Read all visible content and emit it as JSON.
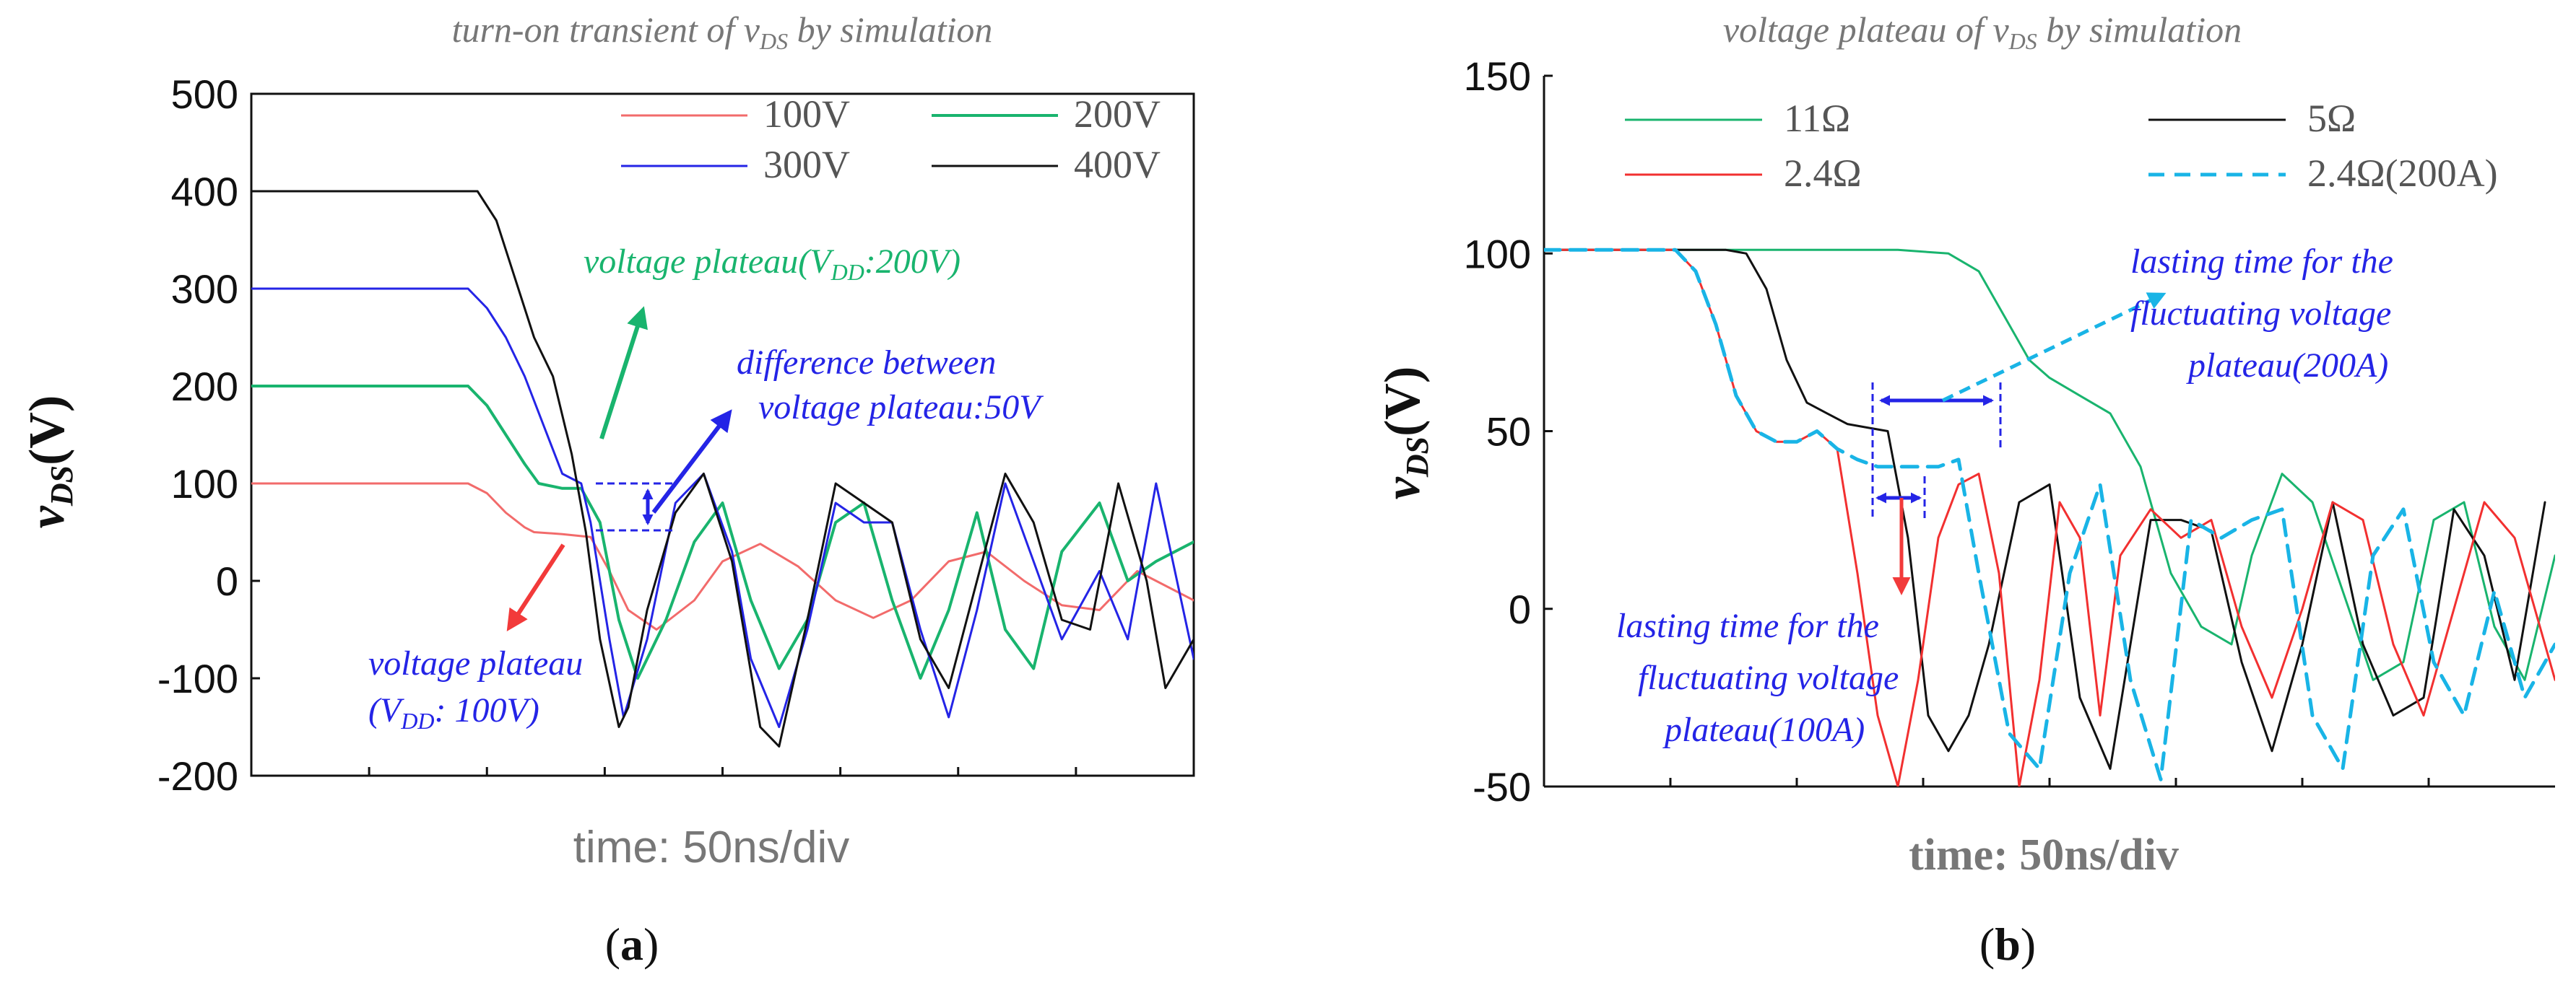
{
  "chart_data": [
    {
      "type": "line",
      "panel_label": "a",
      "title": "turn-on transient of v_DS by simulation",
      "title_main": "turn-on transient of ",
      "title_var": "v",
      "title_sub": "DS",
      "title_rest": " by simulation",
      "xlabel": "time: 50ns/div",
      "ylabel_main": "v",
      "ylabel_sub": "DS",
      "ylabel_unit": "(V)",
      "ylim": [
        -200,
        500
      ],
      "yticks": [
        -200,
        -100,
        0,
        100,
        200,
        300,
        400,
        500
      ],
      "ytick_labels": [
        "-200",
        "-100",
        "0",
        "100",
        "200",
        "300",
        "400",
        "500"
      ],
      "xlim": [
        0,
        10
      ],
      "grid": false,
      "legend": "top-right",
      "series": [
        {
          "name": "100V",
          "color": "#f26b6b",
          "width": 3,
          "x": [
            0,
            2.3,
            2.5,
            2.7,
            2.9,
            3.0,
            3.3,
            3.6,
            3.8,
            4.0,
            4.3,
            4.7,
            5.0,
            5.4,
            5.8,
            6.2,
            6.6,
            7.0,
            7.4,
            7.8,
            8.2,
            8.6,
            9.0,
            9.4,
            10.0
          ],
          "y": [
            100,
            100,
            90,
            70,
            55,
            50,
            48,
            45,
            10,
            -30,
            -50,
            -20,
            20,
            38,
            15,
            -20,
            -38,
            -20,
            20,
            30,
            0,
            -25,
            -30,
            10,
            -20
          ]
        },
        {
          "name": "200V",
          "color": "#19b46e",
          "width": 4,
          "x": [
            0,
            2.3,
            2.5,
            2.7,
            2.9,
            3.05,
            3.3,
            3.5,
            3.7,
            3.9,
            4.1,
            4.4,
            4.7,
            5.0,
            5.3,
            5.6,
            5.9,
            6.2,
            6.5,
            6.8,
            7.1,
            7.4,
            7.7,
            8.0,
            8.3,
            8.6,
            9.0,
            9.3,
            9.6,
            10.0
          ],
          "y": [
            200,
            200,
            180,
            150,
            120,
            100,
            95,
            95,
            60,
            -40,
            -100,
            -40,
            40,
            80,
            -20,
            -90,
            -40,
            60,
            80,
            -20,
            -100,
            -30,
            70,
            -50,
            -90,
            30,
            80,
            0,
            20,
            40
          ]
        },
        {
          "name": "300V",
          "color": "#2424e6",
          "width": 3,
          "x": [
            0,
            2.3,
            2.5,
            2.7,
            2.9,
            3.1,
            3.3,
            3.5,
            3.6,
            3.8,
            3.95,
            4.2,
            4.5,
            4.8,
            5.1,
            5.3,
            5.6,
            5.9,
            6.2,
            6.5,
            6.8,
            7.1,
            7.4,
            7.7,
            8.0,
            8.3,
            8.6,
            9.0,
            9.3,
            9.6,
            10.0
          ],
          "y": [
            300,
            300,
            280,
            250,
            210,
            160,
            110,
            100,
            60,
            -60,
            -140,
            -60,
            80,
            110,
            30,
            -80,
            -150,
            -50,
            80,
            60,
            60,
            -50,
            -140,
            -30,
            100,
            20,
            -60,
            10,
            -60,
            100,
            -80
          ]
        },
        {
          "name": "400V",
          "color": "#111111",
          "width": 3,
          "x": [
            0,
            2.4,
            2.6,
            2.8,
            3.0,
            3.2,
            3.4,
            3.55,
            3.7,
            3.9,
            4.0,
            4.2,
            4.5,
            4.8,
            5.1,
            5.4,
            5.6,
            5.9,
            6.2,
            6.5,
            6.8,
            7.1,
            7.4,
            7.7,
            8.0,
            8.3,
            8.6,
            8.9,
            9.2,
            9.5,
            9.7,
            10.0
          ],
          "y": [
            400,
            400,
            370,
            310,
            250,
            210,
            130,
            50,
            -60,
            -150,
            -130,
            -30,
            70,
            110,
            20,
            -150,
            -170,
            -40,
            100,
            80,
            60,
            -60,
            -110,
            0,
            110,
            60,
            -40,
            -50,
            100,
            0,
            -110,
            -60
          ]
        }
      ],
      "annotations": [
        {
          "text_main": "voltage plateau(",
          "text_var": "V",
          "text_sub": "DD",
          "text_rest": ":200V)",
          "color": "#19b46e"
        },
        {
          "text_line1": "difference between",
          "text_line2": "voltage plateau:50V",
          "color": "#2424e6"
        },
        {
          "text_line1": "voltage plateau",
          "text_open": "(",
          "text_var": "V",
          "text_sub": "DD",
          "text_rest": ": 100V)",
          "color": "#2424e6"
        }
      ]
    },
    {
      "type": "line",
      "panel_label": "b",
      "title": "voltage plateau of v_DS by simulation",
      "title_main": "voltage plateau of ",
      "title_var": "v",
      "title_sub": "DS",
      "title_rest": " by simulation",
      "xlabel": "time: 50ns/div",
      "ylabel_main": "v",
      "ylabel_sub": "DS",
      "ylabel_unit": "(V)",
      "ylim": [
        -50,
        150
      ],
      "yticks": [
        -50,
        0,
        50,
        100,
        150
      ],
      "ytick_labels": [
        "-50",
        "0",
        "50",
        "100",
        "150"
      ],
      "xlim": [
        0,
        10
      ],
      "grid": false,
      "legend": "top",
      "series": [
        {
          "name": "11Ω",
          "color": "#19b46e",
          "width": 3,
          "dash": "",
          "x": [
            0,
            2.0,
            3.5,
            4.0,
            4.3,
            4.6,
            4.8,
            5.0,
            5.3,
            5.6,
            5.9,
            6.2,
            6.5,
            6.8,
            7.0,
            7.3,
            7.6,
            7.9,
            8.2,
            8.5,
            8.8,
            9.1,
            9.4,
            9.7,
            10.0
          ],
          "y": [
            101,
            101,
            101,
            100,
            95,
            80,
            70,
            65,
            60,
            55,
            40,
            10,
            -5,
            -10,
            15,
            38,
            30,
            5,
            -20,
            -15,
            25,
            30,
            -5,
            -20,
            15
          ]
        },
        {
          "name": "5Ω",
          "color": "#111111",
          "width": 3,
          "dash": "",
          "x": [
            0,
            1.8,
            2.0,
            2.2,
            2.4,
            2.6,
            2.8,
            3.0,
            3.2,
            3.4,
            3.6,
            3.8,
            4.0,
            4.2,
            4.4,
            4.7,
            5.0,
            5.3,
            5.6,
            6.0,
            6.3,
            6.6,
            6.9,
            7.2,
            7.5,
            7.8,
            8.1,
            8.4,
            8.7,
            9.0,
            9.3,
            9.6,
            9.9
          ],
          "y": [
            101,
            101,
            100,
            90,
            70,
            58,
            55,
            52,
            51,
            50,
            20,
            -30,
            -40,
            -30,
            -10,
            30,
            35,
            -25,
            -45,
            25,
            25,
            22,
            -15,
            -40,
            -10,
            30,
            -10,
            -30,
            -25,
            28,
            15,
            -20,
            30
          ]
        },
        {
          "name": "2.4Ω",
          "color": "#f23030",
          "width": 3,
          "dash": "",
          "x": [
            0,
            1.3,
            1.5,
            1.7,
            1.9,
            2.1,
            2.3,
            2.5,
            2.7,
            2.9,
            3.1,
            3.3,
            3.5,
            3.7,
            3.9,
            4.1,
            4.3,
            4.5,
            4.7,
            4.9,
            5.1,
            5.3,
            5.5,
            5.7,
            6.0,
            6.3,
            6.6,
            6.9,
            7.2,
            7.5,
            7.8,
            8.1,
            8.4,
            8.7,
            9.0,
            9.3,
            9.6,
            10.0
          ],
          "y": [
            101,
            101,
            95,
            80,
            60,
            50,
            47,
            47,
            50,
            45,
            10,
            -30,
            -50,
            -20,
            20,
            35,
            38,
            10,
            -50,
            -20,
            30,
            20,
            -30,
            15,
            28,
            20,
            25,
            -5,
            -25,
            0,
            30,
            25,
            -10,
            -30,
            0,
            30,
            20,
            -20
          ]
        },
        {
          "name": "2.4Ω(200A)",
          "color": "#19b4e6",
          "width": 5,
          "dash": "22 14",
          "x": [
            0,
            1.3,
            1.5,
            1.7,
            1.9,
            2.1,
            2.3,
            2.5,
            2.7,
            2.9,
            3.1,
            3.3,
            3.5,
            3.7,
            3.9,
            4.1,
            4.3,
            4.6,
            4.9,
            5.2,
            5.5,
            5.8,
            6.1,
            6.4,
            6.7,
            7.0,
            7.3,
            7.6,
            7.9,
            8.2,
            8.5,
            8.8,
            9.1,
            9.4,
            9.7,
            10.0
          ],
          "y": [
            101,
            101,
            95,
            80,
            60,
            50,
            47,
            47,
            50,
            45,
            42,
            40,
            40,
            40,
            40,
            42,
            10,
            -35,
            -45,
            10,
            35,
            -20,
            -48,
            25,
            20,
            25,
            28,
            -30,
            -45,
            15,
            28,
            -15,
            -30,
            5,
            -25,
            -10
          ]
        }
      ],
      "annotations": [
        {
          "text_line1": "lasting time for the",
          "text_line2": "fluctuating voltage",
          "text_line3": "plateau(200A)",
          "color": "#2424e6"
        },
        {
          "text_line1": "lasting time for the",
          "text_line2": "fluctuating voltage",
          "text_line3": "plateau(100A)",
          "color": "#2424e6"
        }
      ]
    }
  ],
  "colors": {
    "arrow_red": "#f23a3a",
    "arrow_green": "#19b46e",
    "arrow_blue": "#2424e6",
    "arrow_cyan": "#19b4e6"
  }
}
